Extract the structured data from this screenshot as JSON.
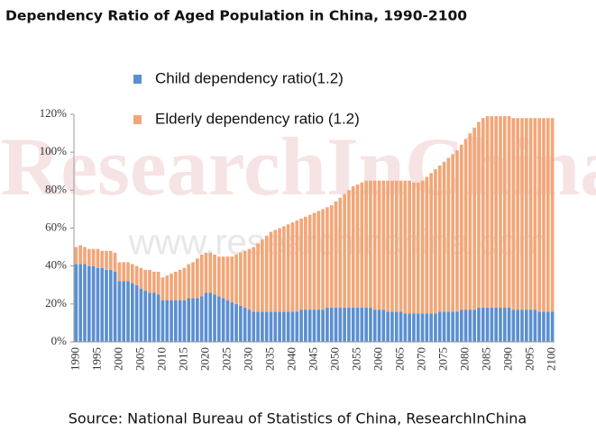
{
  "chart_data": {
    "type": "stacked_bar",
    "title": "Dependency Ratio of Aged Population in China, 1990-2100",
    "source": "Source: National Bureau of Statistics of China, ResearchInChina",
    "watermark": [
      "ResearchInChina",
      "www.researchinchina.com"
    ],
    "categories": [
      "1990",
      null,
      null,
      null,
      null,
      "1995",
      null,
      null,
      null,
      null,
      "2000",
      null,
      null,
      null,
      null,
      "2005",
      null,
      null,
      null,
      null,
      "2010",
      null,
      null,
      null,
      null,
      "2015",
      null,
      null,
      null,
      null,
      "2020",
      null,
      null,
      null,
      null,
      "2025",
      null,
      null,
      null,
      null,
      "2030",
      null,
      null,
      null,
      null,
      "2035",
      null,
      null,
      null,
      null,
      "2040",
      null,
      null,
      null,
      null,
      "2045",
      null,
      null,
      null,
      null,
      "2050",
      null,
      null,
      null,
      null,
      "2055",
      null,
      null,
      null,
      null,
      "2060",
      null,
      null,
      null,
      null,
      "2065",
      null,
      null,
      null,
      null,
      "2070",
      null,
      null,
      null,
      null,
      "2075",
      null,
      null,
      null,
      null,
      "2080",
      null,
      null,
      null,
      null,
      "2085",
      null,
      null,
      null,
      null,
      "2090",
      null,
      null,
      null,
      null,
      "2095",
      null,
      null,
      null,
      null,
      "2100"
    ],
    "series": [
      {
        "name": "Child dependency ratio(1.2)",
        "color": "#5b8fd0",
        "values": [
          41,
          41,
          41,
          40,
          40,
          39,
          39,
          38,
          38,
          37,
          32,
          32,
          32,
          31,
          30,
          28,
          27,
          26,
          26,
          25,
          22,
          22,
          22,
          22,
          22,
          22,
          23,
          23,
          23,
          24,
          26,
          26,
          25,
          24,
          23,
          22,
          21,
          20,
          19,
          18,
          17,
          16,
          16,
          16,
          16,
          16,
          16,
          16,
          16,
          16,
          16,
          16,
          17,
          17,
          17,
          17,
          17,
          17,
          18,
          18,
          18,
          18,
          18,
          18,
          18,
          18,
          18,
          18,
          18,
          17,
          17,
          17,
          16,
          16,
          16,
          16,
          15,
          15,
          15,
          15,
          15,
          15,
          15,
          15,
          16,
          16,
          16,
          16,
          16,
          17,
          17,
          17,
          17,
          18,
          18,
          18,
          18,
          18,
          18,
          18,
          18,
          17,
          17,
          17,
          17,
          17,
          17,
          16,
          16,
          16,
          16
        ]
      },
      {
        "name": "Elderly dependency ratio (1.2)",
        "color": "#f2a677",
        "values": [
          9,
          10,
          9,
          9,
          9,
          10,
          9,
          10,
          10,
          10,
          10,
          10,
          10,
          10,
          10,
          11,
          11,
          12,
          11,
          12,
          12,
          13,
          14,
          15,
          16,
          17,
          18,
          19,
          21,
          22,
          21,
          21,
          21,
          21,
          22,
          23,
          24,
          26,
          28,
          30,
          32,
          34,
          36,
          38,
          40,
          42,
          43,
          44,
          45,
          46,
          47,
          48,
          48,
          49,
          50,
          51,
          52,
          53,
          53,
          54,
          56,
          58,
          60,
          62,
          64,
          65,
          66,
          67,
          67,
          68,
          68,
          68,
          69,
          69,
          69,
          69,
          70,
          70,
          69,
          69,
          70,
          72,
          74,
          76,
          77,
          79,
          81,
          83,
          85,
          87,
          90,
          93,
          96,
          98,
          100,
          101,
          101,
          101,
          101,
          101,
          101,
          101,
          101,
          101,
          101,
          101,
          101,
          102,
          102,
          102,
          102
        ]
      }
    ],
    "ylim": [
      0,
      120
    ],
    "yticks": [
      {
        "value": 0,
        "label": "0%"
      },
      {
        "value": 20,
        "label": "20%"
      },
      {
        "value": 40,
        "label": "40%"
      },
      {
        "value": 60,
        "label": "60%"
      },
      {
        "value": 80,
        "label": "80%"
      },
      {
        "value": 100,
        "label": "100%"
      },
      {
        "value": 120,
        "label": "120%"
      }
    ],
    "legend": "top-left"
  }
}
